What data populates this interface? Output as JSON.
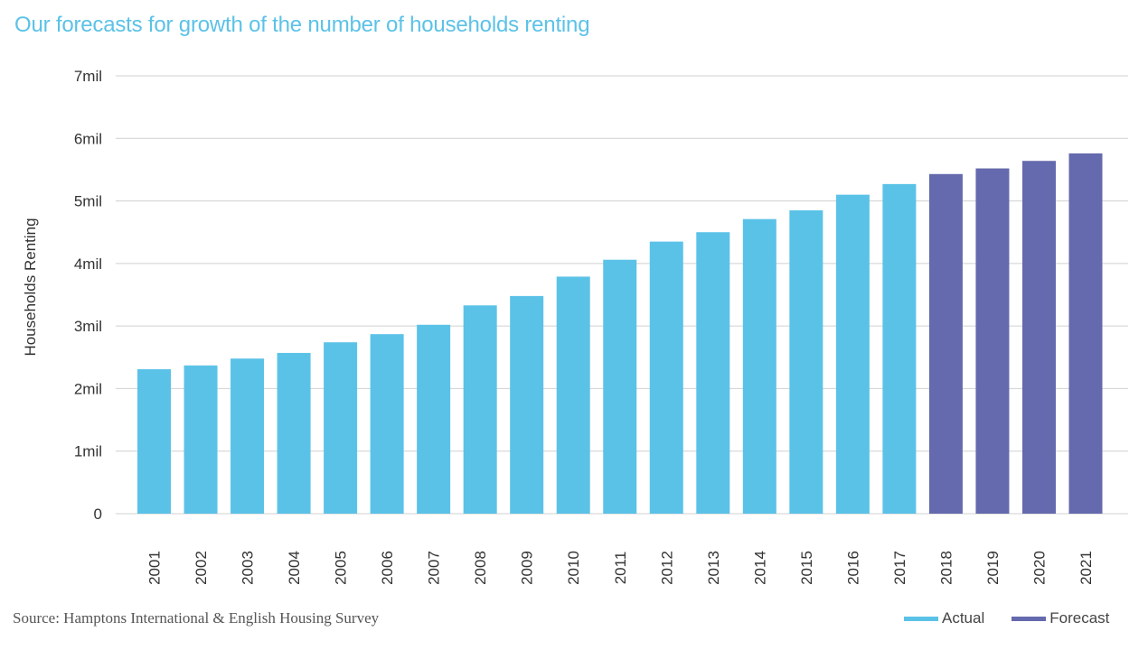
{
  "title": "Our forecasts for growth of the number of households renting",
  "source": "Source: Hamptons International  &  English Housing Survey",
  "colors": {
    "actual": "#5bc2e7",
    "forecast": "#6569ad",
    "title": "#5bc2e7",
    "grid": "#d0d0d0"
  },
  "legend": {
    "actual": "Actual",
    "forecast": "Forecast"
  },
  "chart_data": {
    "type": "bar",
    "title": "Our forecasts for growth of the number of households renting",
    "xlabel": "",
    "ylabel": "Households Renting",
    "ylim": [
      0,
      7
    ],
    "yticks": [
      {
        "value": 0,
        "label": "0"
      },
      {
        "value": 1,
        "label": "1mil"
      },
      {
        "value": 2,
        "label": "2mil"
      },
      {
        "value": 3,
        "label": "3mil"
      },
      {
        "value": 4,
        "label": "4mil"
      },
      {
        "value": 5,
        "label": "5mil"
      },
      {
        "value": 6,
        "label": "6mil"
      },
      {
        "value": 7,
        "label": "7mil"
      }
    ],
    "grid": true,
    "legend_position": "bottom-right",
    "categories": [
      "2001",
      "2002",
      "2003",
      "2004",
      "2005",
      "2006",
      "2007",
      "2008",
      "2009",
      "2010",
      "2011",
      "2012",
      "2013",
      "2014",
      "2015",
      "2016",
      "2017",
      "2018",
      "2019",
      "2020",
      "2021"
    ],
    "series": [
      {
        "name": "Actual",
        "values": [
          2.31,
          2.37,
          2.48,
          2.57,
          2.74,
          2.87,
          3.02,
          3.33,
          3.48,
          3.79,
          4.06,
          4.35,
          4.5,
          4.71,
          4.85,
          5.1,
          5.27,
          null,
          null,
          null,
          null
        ]
      },
      {
        "name": "Forecast",
        "values": [
          null,
          null,
          null,
          null,
          null,
          null,
          null,
          null,
          null,
          null,
          null,
          null,
          null,
          null,
          null,
          null,
          null,
          5.43,
          5.52,
          5.64,
          5.76
        ]
      }
    ]
  }
}
